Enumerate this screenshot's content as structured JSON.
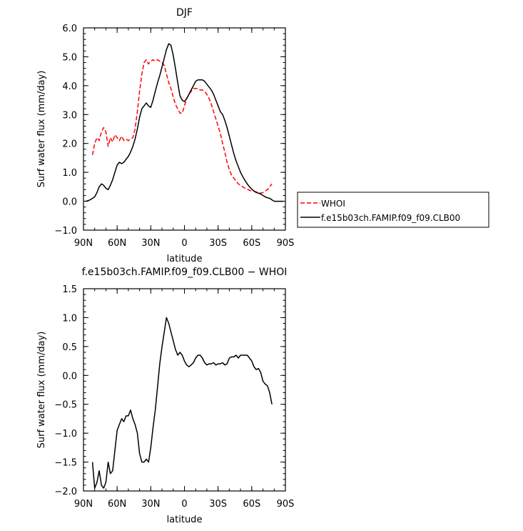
{
  "chart_data": [
    {
      "type": "line",
      "title": "DJF",
      "xlabel": "latitude",
      "ylabel": "Surf water flux (mm/day)",
      "xlim": [
        90,
        -90
      ],
      "ylim": [
        -1.0,
        6.0
      ],
      "x_ticks": [
        {
          "value": 90,
          "label": "90N"
        },
        {
          "value": 60,
          "label": "60N"
        },
        {
          "value": 30,
          "label": "30N"
        },
        {
          "value": 0,
          "label": "0"
        },
        {
          "value": -30,
          "label": "30S"
        },
        {
          "value": -60,
          "label": "60S"
        },
        {
          "value": -90,
          "label": "90S"
        }
      ],
      "y_ticks": [
        {
          "value": -1.0,
          "label": "−1.0"
        },
        {
          "value": 0.0,
          "label": "0.0"
        },
        {
          "value": 1.0,
          "label": "1.0"
        },
        {
          "value": 2.0,
          "label": "2.0"
        },
        {
          "value": 3.0,
          "label": "3.0"
        },
        {
          "value": 4.0,
          "label": "4.0"
        },
        {
          "value": 5.0,
          "label": "5.0"
        },
        {
          "value": 6.0,
          "label": "6.0"
        }
      ],
      "grid": false,
      "legend_position": "right",
      "series": [
        {
          "name": "WHOI",
          "color": "#ff0000",
          "dash": true,
          "x": [
            82,
            80,
            78,
            76,
            74,
            72,
            70,
            68,
            66,
            64,
            62,
            60,
            58,
            56,
            54,
            52,
            50,
            48,
            46,
            44,
            42,
            40,
            38,
            36,
            34,
            32,
            30,
            28,
            26,
            24,
            22,
            20,
            18,
            16,
            14,
            12,
            10,
            8,
            6,
            4,
            2,
            0,
            -2,
            -4,
            -6,
            -8,
            -10,
            -12,
            -14,
            -16,
            -18,
            -20,
            -22,
            -24,
            -26,
            -28,
            -30,
            -32,
            -34,
            -36,
            -38,
            -40,
            -42,
            -44,
            -46,
            -48,
            -50,
            -52,
            -54,
            -56,
            -58,
            -60,
            -62,
            -64,
            -66,
            -68,
            -70,
            -72,
            -74,
            -76,
            -78
          ],
          "y": [
            1.6,
            2.0,
            2.2,
            2.1,
            2.4,
            2.55,
            2.4,
            1.9,
            2.2,
            2.05,
            2.3,
            2.2,
            2.1,
            2.25,
            2.1,
            2.15,
            2.1,
            2.15,
            2.2,
            2.5,
            3.1,
            3.8,
            4.4,
            4.8,
            4.9,
            4.75,
            4.85,
            4.9,
            4.85,
            4.9,
            4.85,
            4.8,
            4.7,
            4.4,
            4.1,
            3.9,
            3.6,
            3.35,
            3.2,
            3.05,
            3.05,
            3.3,
            3.55,
            3.7,
            3.8,
            3.9,
            3.9,
            3.9,
            3.85,
            3.85,
            3.8,
            3.7,
            3.55,
            3.35,
            3.1,
            2.85,
            2.6,
            2.35,
            2.0,
            1.7,
            1.35,
            1.1,
            0.9,
            0.8,
            0.7,
            0.6,
            0.55,
            0.5,
            0.45,
            0.42,
            0.38,
            0.35,
            0.35,
            0.32,
            0.3,
            0.28,
            0.3,
            0.35,
            0.4,
            0.5,
            0.6
          ]
        },
        {
          "name": "f.e15b03ch.FAMIP.f09_f09.CLB00",
          "color": "#000000",
          "dash": false,
          "x": [
            88,
            86,
            84,
            82,
            80,
            78,
            76,
            74,
            72,
            70,
            68,
            66,
            64,
            62,
            60,
            58,
            56,
            54,
            52,
            50,
            48,
            46,
            44,
            42,
            40,
            38,
            36,
            34,
            32,
            30,
            28,
            26,
            24,
            22,
            20,
            18,
            16,
            14,
            12,
            10,
            8,
            6,
            4,
            2,
            0,
            -2,
            -4,
            -6,
            -8,
            -10,
            -12,
            -14,
            -16,
            -18,
            -20,
            -22,
            -24,
            -26,
            -28,
            -30,
            -32,
            -34,
            -36,
            -38,
            -40,
            -42,
            -44,
            -46,
            -48,
            -50,
            -52,
            -54,
            -56,
            -58,
            -60,
            -62,
            -64,
            -66,
            -68,
            -70,
            -72,
            -74,
            -76,
            -78,
            -80,
            -82,
            -84,
            -86,
            -88
          ],
          "y": [
            0.0,
            0.02,
            0.05,
            0.1,
            0.15,
            0.3,
            0.5,
            0.6,
            0.55,
            0.45,
            0.4,
            0.55,
            0.75,
            1.0,
            1.25,
            1.35,
            1.3,
            1.35,
            1.45,
            1.55,
            1.7,
            1.9,
            2.15,
            2.5,
            2.9,
            3.2,
            3.3,
            3.4,
            3.3,
            3.25,
            3.5,
            3.8,
            4.1,
            4.35,
            4.65,
            4.95,
            5.25,
            5.45,
            5.4,
            5.05,
            4.6,
            4.1,
            3.65,
            3.5,
            3.45,
            3.55,
            3.7,
            3.85,
            4.0,
            4.15,
            4.2,
            4.2,
            4.2,
            4.15,
            4.05,
            3.95,
            3.85,
            3.7,
            3.5,
            3.3,
            3.1,
            3.0,
            2.8,
            2.55,
            2.25,
            1.95,
            1.65,
            1.4,
            1.2,
            1.0,
            0.85,
            0.72,
            0.6,
            0.5,
            0.42,
            0.35,
            0.3,
            0.28,
            0.25,
            0.2,
            0.15,
            0.12,
            0.1,
            0.05,
            0.0,
            0.0,
            0.0,
            0.0,
            0.0
          ]
        }
      ]
    },
    {
      "type": "line",
      "title": "f.e15b03ch.FAMIP.f09_f09.CLB00 − WHOI",
      "xlabel": "latitude",
      "ylabel": "Surf water flux (mm/day)",
      "xlim": [
        90,
        -90
      ],
      "ylim": [
        -2.0,
        1.5
      ],
      "x_ticks": [
        {
          "value": 90,
          "label": "90N"
        },
        {
          "value": 60,
          "label": "60N"
        },
        {
          "value": 30,
          "label": "30N"
        },
        {
          "value": 0,
          "label": "0"
        },
        {
          "value": -30,
          "label": "30S"
        },
        {
          "value": -60,
          "label": "60S"
        },
        {
          "value": -90,
          "label": "90S"
        }
      ],
      "y_ticks": [
        {
          "value": -2.0,
          "label": "−2.0"
        },
        {
          "value": -1.5,
          "label": "−1.5"
        },
        {
          "value": -1.0,
          "label": "−1.0"
        },
        {
          "value": -0.5,
          "label": "−0.5"
        },
        {
          "value": 0.0,
          "label": "0.0"
        },
        {
          "value": 0.5,
          "label": "0.5"
        },
        {
          "value": 1.0,
          "label": "1.0"
        },
        {
          "value": 1.5,
          "label": "1.5"
        }
      ],
      "grid": false,
      "series": [
        {
          "color": "#000000",
          "dash": false,
          "x": [
            82,
            80,
            78,
            76,
            74,
            72,
            70,
            68,
            66,
            64,
            62,
            60,
            58,
            56,
            54,
            52,
            50,
            48,
            46,
            44,
            42,
            40,
            38,
            36,
            34,
            32,
            30,
            28,
            26,
            24,
            22,
            20,
            18,
            16,
            14,
            12,
            10,
            8,
            6,
            4,
            2,
            0,
            -2,
            -4,
            -6,
            -8,
            -10,
            -12,
            -14,
            -16,
            -18,
            -20,
            -22,
            -24,
            -26,
            -28,
            -30,
            -32,
            -34,
            -36,
            -38,
            -40,
            -42,
            -44,
            -46,
            -48,
            -50,
            -52,
            -54,
            -56,
            -58,
            -60,
            -62,
            -64,
            -66,
            -68,
            -70,
            -72,
            -74,
            -76,
            -78
          ],
          "y": [
            -1.5,
            -1.95,
            -1.85,
            -1.65,
            -1.9,
            -1.95,
            -1.85,
            -1.5,
            -1.7,
            -1.65,
            -1.3,
            -0.95,
            -0.85,
            -0.75,
            -0.8,
            -0.7,
            -0.7,
            -0.6,
            -0.75,
            -0.85,
            -1.0,
            -1.35,
            -1.5,
            -1.5,
            -1.45,
            -1.5,
            -1.25,
            -0.9,
            -0.6,
            -0.2,
            0.2,
            0.5,
            0.75,
            1.0,
            0.9,
            0.75,
            0.6,
            0.45,
            0.35,
            0.4,
            0.35,
            0.25,
            0.18,
            0.15,
            0.18,
            0.22,
            0.3,
            0.35,
            0.35,
            0.3,
            0.22,
            0.18,
            0.2,
            0.2,
            0.22,
            0.18,
            0.2,
            0.2,
            0.22,
            0.18,
            0.2,
            0.3,
            0.32,
            0.32,
            0.35,
            0.3,
            0.35,
            0.35,
            0.35,
            0.35,
            0.3,
            0.25,
            0.15,
            0.1,
            0.12,
            0.05,
            -0.1,
            -0.15,
            -0.18,
            -0.3,
            -0.5
          ]
        }
      ]
    }
  ]
}
